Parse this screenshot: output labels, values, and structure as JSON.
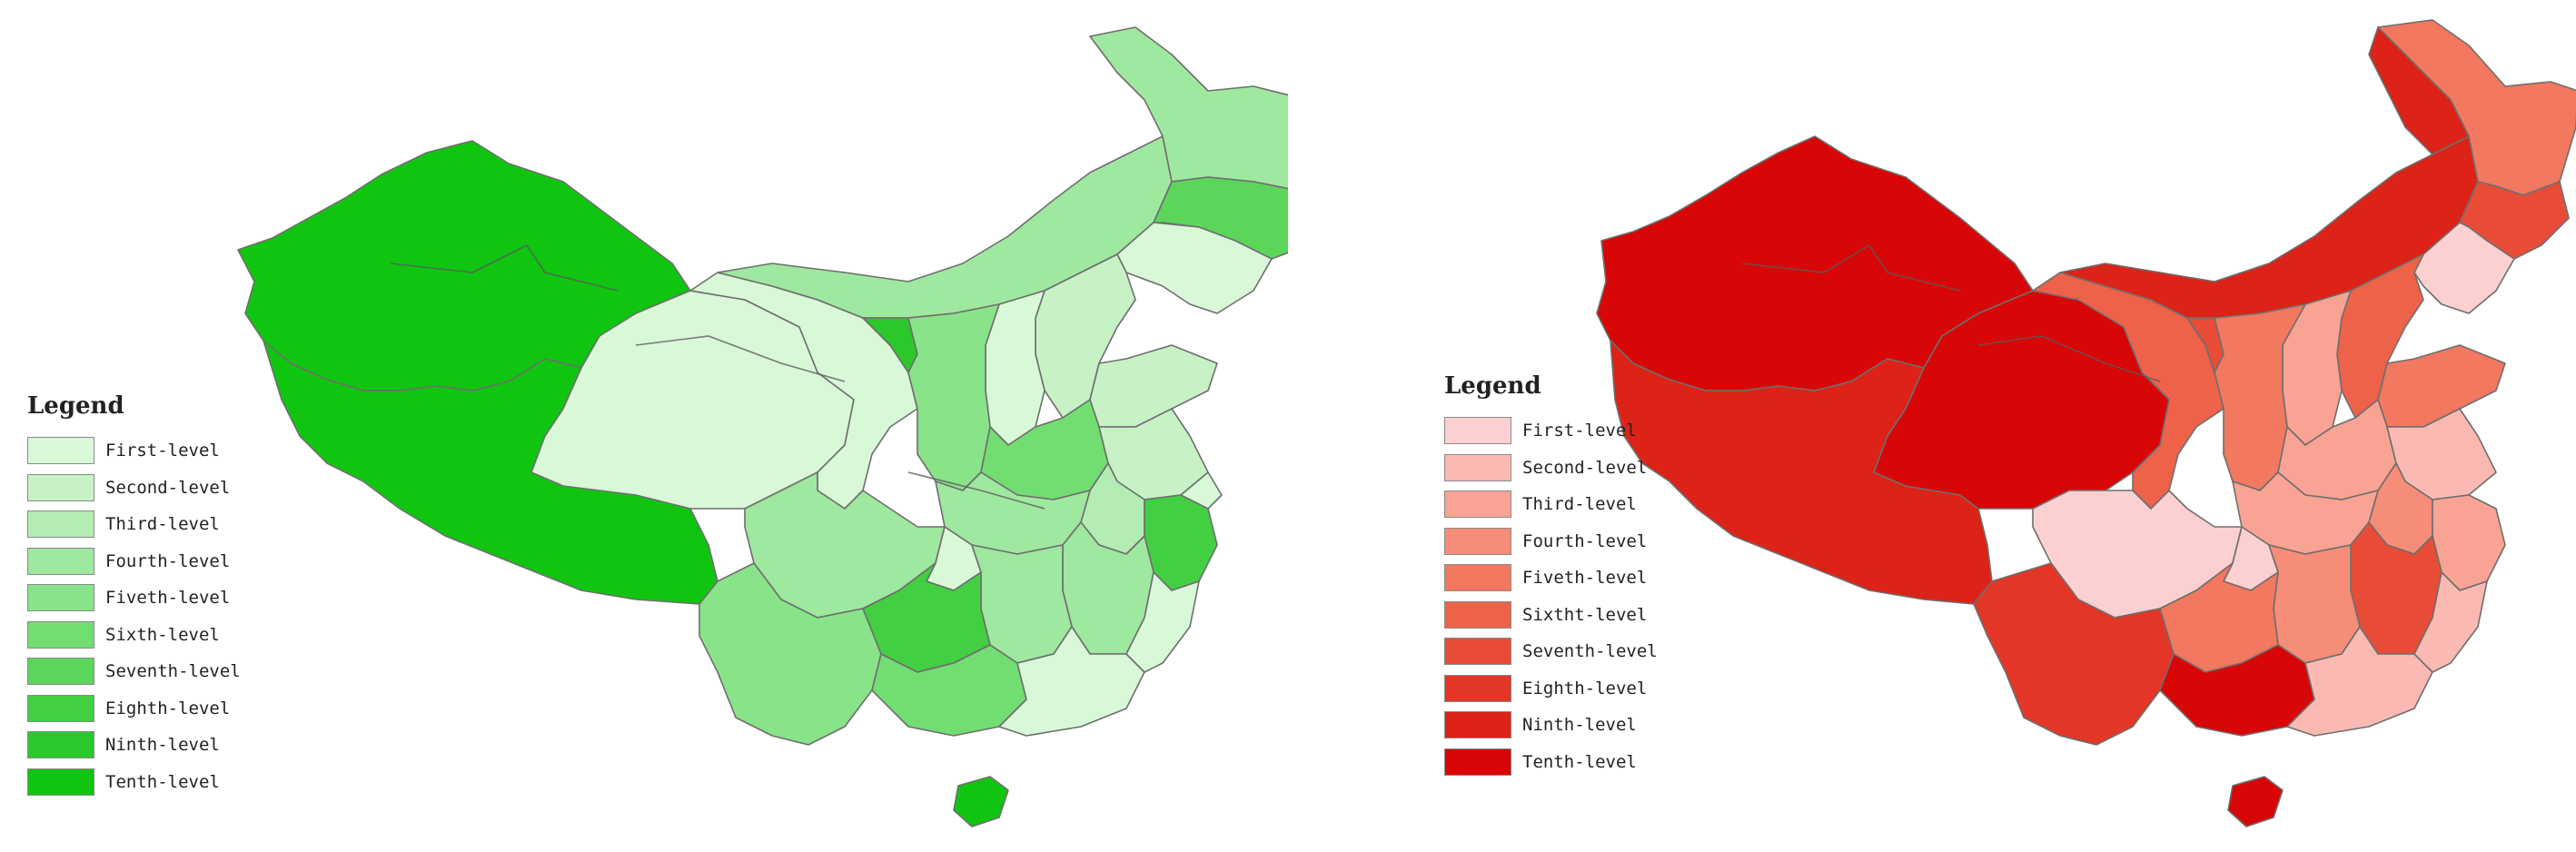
{
  "maps": [
    {
      "legend": {
        "title": "Legend",
        "levels": [
          {
            "label": "First-level",
            "color": "#d8f8d8"
          },
          {
            "label": "Second-level",
            "color": "#c6f2c6"
          },
          {
            "label": "Third-level",
            "color": "#b3edb3"
          },
          {
            "label": "Fourth-level",
            "color": "#9fe89f"
          },
          {
            "label": "Fiveth-level",
            "color": "#89e389"
          },
          {
            "label": "Sixth-level",
            "color": "#72de72"
          },
          {
            "label": "Seventh-level",
            "color": "#5bd65b"
          },
          {
            "label": "Eighth-level",
            "color": "#42cf42"
          },
          {
            "label": "Ninth-level",
            "color": "#2bc82b"
          },
          {
            "label": "Tenth-level",
            "color": "#10c510"
          }
        ]
      }
    },
    {
      "legend": {
        "title": "Legend",
        "levels": [
          {
            "label": "First-level",
            "color": "#fcd0d0"
          },
          {
            "label": "Second-level",
            "color": "#fab9b3"
          },
          {
            "label": "Third-level",
            "color": "#f8a393"
          },
          {
            "label": "Fourth-level",
            "color": "#f68d78"
          },
          {
            "label": "Fiveth-level",
            "color": "#f2785f"
          },
          {
            "label": "Sixtht-level",
            "color": "#ee624a"
          },
          {
            "label": "Seventh-level",
            "color": "#e94c36"
          },
          {
            "label": "Eighth-level",
            "color": "#e33626"
          },
          {
            "label": "Ninth-level",
            "color": "#dd2217"
          },
          {
            "label": "Tenth-level",
            "color": "#d80606"
          }
        ]
      }
    }
  ]
}
